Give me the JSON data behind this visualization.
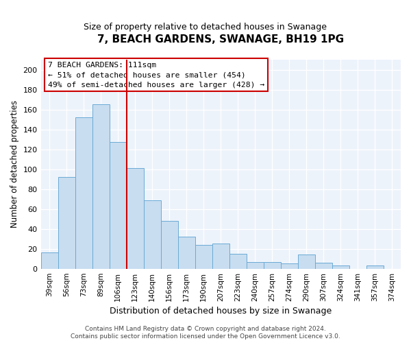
{
  "title": "7, BEACH GARDENS, SWANAGE, BH19 1PG",
  "subtitle": "Size of property relative to detached houses in Swanage",
  "xlabel": "Distribution of detached houses by size in Swanage",
  "ylabel": "Number of detached properties",
  "bar_labels": [
    "39sqm",
    "56sqm",
    "73sqm",
    "89sqm",
    "106sqm",
    "123sqm",
    "140sqm",
    "156sqm",
    "173sqm",
    "190sqm",
    "207sqm",
    "223sqm",
    "240sqm",
    "257sqm",
    "274sqm",
    "290sqm",
    "307sqm",
    "324sqm",
    "341sqm",
    "357sqm",
    "374sqm"
  ],
  "bar_heights": [
    16,
    92,
    152,
    165,
    127,
    101,
    69,
    48,
    32,
    24,
    25,
    15,
    7,
    7,
    5,
    14,
    6,
    3,
    0,
    3,
    0
  ],
  "bar_color": "#c8ddf0",
  "bar_edge_color": "#6aaad4",
  "ylim": [
    0,
    210
  ],
  "yticks": [
    0,
    20,
    40,
    60,
    80,
    100,
    120,
    140,
    160,
    180,
    200
  ],
  "vline_x": 4.5,
  "vline_color": "#cc0000",
  "annotation_title": "7 BEACH GARDENS: 111sqm",
  "annotation_line1": "← 51% of detached houses are smaller (454)",
  "annotation_line2": "49% of semi-detached houses are larger (428) →",
  "annotation_box_color": "#ffffff",
  "annotation_box_edge": "#cc0000",
  "footer1": "Contains HM Land Registry data © Crown copyright and database right 2024.",
  "footer2": "Contains public sector information licensed under the Open Government Licence v3.0.",
  "plot_bg_color": "#edf3fb",
  "fig_bg_color": "#ffffff",
  "grid_color": "#ffffff",
  "figsize": [
    6.0,
    5.0
  ],
  "dpi": 100
}
